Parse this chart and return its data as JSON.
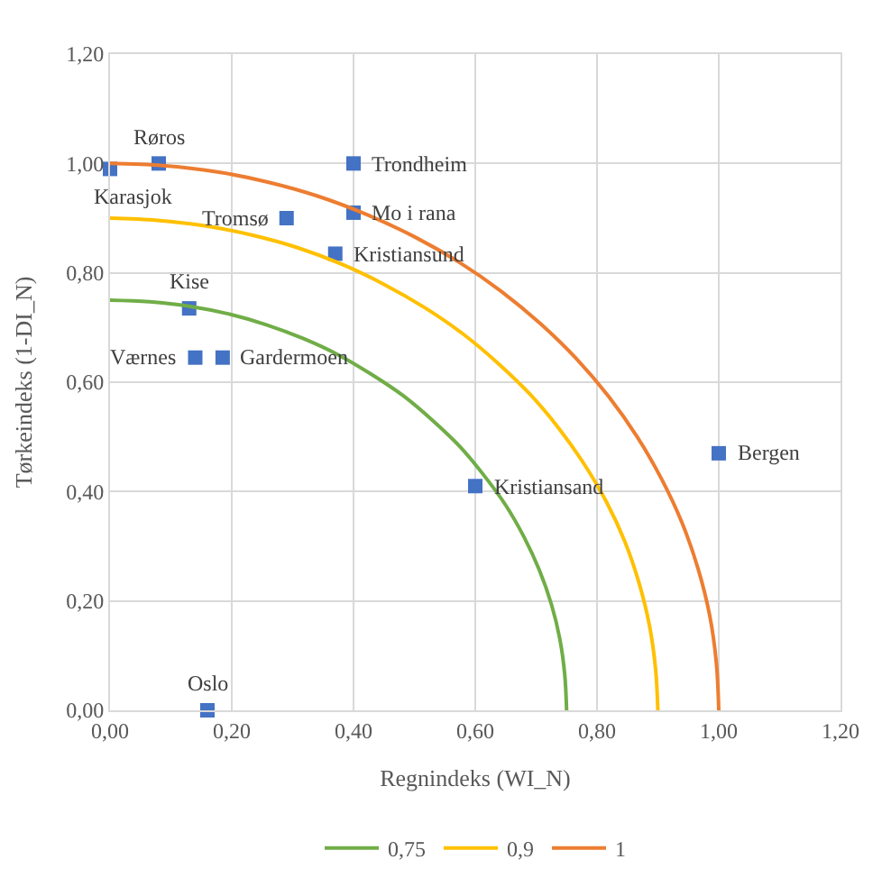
{
  "chart_data": {
    "type": "scatter",
    "xlabel": "Regnindeks (WI_N)",
    "ylabel": "Tørkeindeks (1-DI_N)",
    "xlim": [
      0,
      1.2
    ],
    "ylim": [
      0,
      1.2
    ],
    "xticks": [
      {
        "value": 0,
        "label": "0,00"
      },
      {
        "value": 0.2,
        "label": "0,20"
      },
      {
        "value": 0.4,
        "label": "0,40"
      },
      {
        "value": 0.6,
        "label": "0,60"
      },
      {
        "value": 0.8,
        "label": "0,80"
      },
      {
        "value": 1.0,
        "label": "1,00"
      },
      {
        "value": 1.2,
        "label": "1,20"
      }
    ],
    "yticks": [
      {
        "value": 0,
        "label": "0,00"
      },
      {
        "value": 0.2,
        "label": "0,20"
      },
      {
        "value": 0.4,
        "label": "0,40"
      },
      {
        "value": 0.6,
        "label": "0,60"
      },
      {
        "value": 0.8,
        "label": "0,80"
      },
      {
        "value": 1.0,
        "label": "1,00"
      },
      {
        "value": 1.2,
        "label": "1,20"
      }
    ],
    "grid": true,
    "legend": "bottom",
    "series": [
      {
        "marker": "square",
        "color": "#4472c4",
        "x": [
          0.0,
          0.08,
          0.4,
          0.4,
          0.29,
          0.37,
          0.13,
          0.14,
          0.185,
          0.6,
          1.0,
          0.16
        ],
        "values": [
          0.99,
          1.0,
          1.0,
          0.91,
          0.9,
          0.835,
          0.735,
          0.645,
          0.645,
          0.41,
          0.47,
          0.0
        ]
      },
      {
        "type": "line",
        "marker": "none",
        "name": "0,75",
        "color": "#70ad47",
        "x": [
          0,
          0.065,
          0.13,
          0.194,
          0.257,
          0.317,
          0.375,
          0.43,
          0.482,
          0.53,
          0.575,
          0.614,
          0.65,
          0.68,
          0.705,
          0.725,
          0.739,
          0.747,
          0.75
        ],
        "values": [
          0.75,
          0.747,
          0.739,
          0.725,
          0.705,
          0.68,
          0.65,
          0.614,
          0.575,
          0.53,
          0.482,
          0.43,
          0.375,
          0.317,
          0.257,
          0.194,
          0.13,
          0.065,
          0
        ]
      },
      {
        "type": "line",
        "marker": "none",
        "name": "0,9",
        "color": "#ffc000",
        "x": [
          0,
          0.078,
          0.156,
          0.233,
          0.308,
          0.38,
          0.45,
          0.516,
          0.579,
          0.636,
          0.689,
          0.737,
          0.779,
          0.816,
          0.846,
          0.869,
          0.886,
          0.896,
          0.9
        ],
        "values": [
          0.9,
          0.896,
          0.886,
          0.869,
          0.846,
          0.816,
          0.779,
          0.737,
          0.689,
          0.636,
          0.579,
          0.516,
          0.45,
          0.38,
          0.308,
          0.233,
          0.156,
          0.078,
          0
        ]
      },
      {
        "type": "line",
        "marker": "none",
        "name": "1",
        "color": "#ed7d31",
        "x": [
          0,
          0.087,
          0.174,
          0.259,
          0.342,
          0.423,
          0.5,
          0.574,
          0.643,
          0.707,
          0.766,
          0.819,
          0.866,
          0.906,
          0.94,
          0.966,
          0.985,
          0.996,
          1
        ],
        "values": [
          1,
          0.996,
          0.985,
          0.966,
          0.94,
          0.906,
          0.866,
          0.819,
          0.766,
          0.707,
          0.643,
          0.574,
          0.5,
          0.423,
          0.342,
          0.259,
          0.174,
          0.087,
          0
        ]
      }
    ],
    "annotations": [
      {
        "text": "Karasjok",
        "x": 0.0,
        "y": 0.99
      },
      {
        "text": "Røros",
        "x": 0.08,
        "y": 1.0
      },
      {
        "text": "Trondheim",
        "x": 0.4,
        "y": 1.0
      },
      {
        "text": "Mo i rana",
        "x": 0.4,
        "y": 0.91
      },
      {
        "text": "Tromsø",
        "x": 0.29,
        "y": 0.9
      },
      {
        "text": "Kristiansund",
        "x": 0.37,
        "y": 0.835
      },
      {
        "text": "Kise",
        "x": 0.13,
        "y": 0.735
      },
      {
        "text": "Værnes",
        "x": 0.14,
        "y": 0.645
      },
      {
        "text": "Gardermoen",
        "x": 0.185,
        "y": 0.645
      },
      {
        "text": "Kristiansand",
        "x": 0.6,
        "y": 0.41
      },
      {
        "text": "Bergen",
        "x": 1.0,
        "y": 0.47
      },
      {
        "text": "Oslo",
        "x": 0.16,
        "y": 0.0
      }
    ]
  }
}
